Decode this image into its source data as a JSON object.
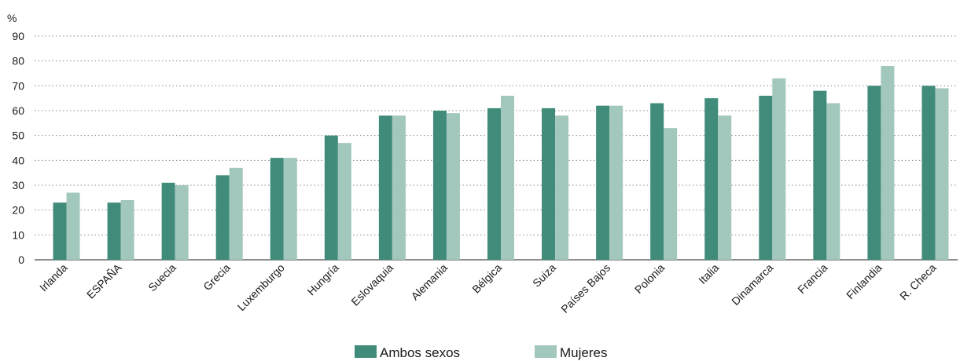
{
  "chart_data": {
    "type": "bar",
    "ylabel": "%",
    "ylim": [
      0,
      90
    ],
    "yticks": [
      0,
      10,
      20,
      30,
      40,
      50,
      60,
      70,
      80,
      90
    ],
    "grid": "horizontal dotted",
    "legend_position": "bottom-center",
    "categories": [
      "Irlanda",
      "ESPAÑA",
      "Suecia",
      "Grecia",
      "Luxemburgo",
      "Hungría",
      "Eslovaquia",
      "Alemania",
      "Bélgica",
      "Suiza",
      "Países Bajos",
      "Polonia",
      "Italia",
      "Dinamarca",
      "Francia",
      "Finlandia",
      "R. Checa"
    ],
    "series": [
      {
        "name": "Ambos sexos",
        "color": "#418b7b",
        "values": [
          23,
          23,
          31,
          34,
          41,
          50,
          58,
          60,
          61,
          61,
          62,
          63,
          65,
          66,
          68,
          70,
          70
        ]
      },
      {
        "name": "Mujeres",
        "color": "#a2c7bc",
        "values": [
          27,
          24,
          30,
          37,
          41,
          47,
          58,
          59,
          66,
          58,
          62,
          53,
          58,
          73,
          63,
          78,
          69
        ]
      }
    ]
  }
}
